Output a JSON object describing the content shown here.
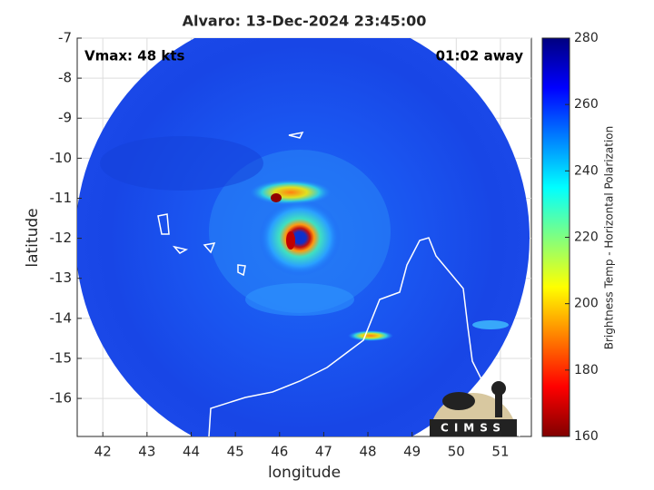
{
  "chart_data": {
    "type": "image",
    "title": "Alvaro: 13-Dec-2024 23:45:00",
    "annotations": [
      "Vmax: 48 kts",
      "01:02 away"
    ],
    "x_label": "longitude",
    "y_label": "latitude",
    "xlim": [
      41.42,
      51.7
    ],
    "xticks": [
      42,
      43,
      44,
      45,
      46,
      47,
      48,
      49,
      50,
      51
    ],
    "ylim": [
      -16.95,
      -7
    ],
    "yticks": [
      -16,
      -15,
      -14,
      -13,
      -12,
      -11,
      -10,
      -9,
      -8,
      -7
    ],
    "grid": true,
    "colorbar": {
      "label": "Brightness Temp - Horizontal Polarization",
      "colormap": "jet",
      "lim": [
        160,
        280
      ],
      "ticks": [
        160,
        180,
        200,
        220,
        240,
        260,
        280
      ]
    },
    "logo_text": "CIMSS"
  }
}
